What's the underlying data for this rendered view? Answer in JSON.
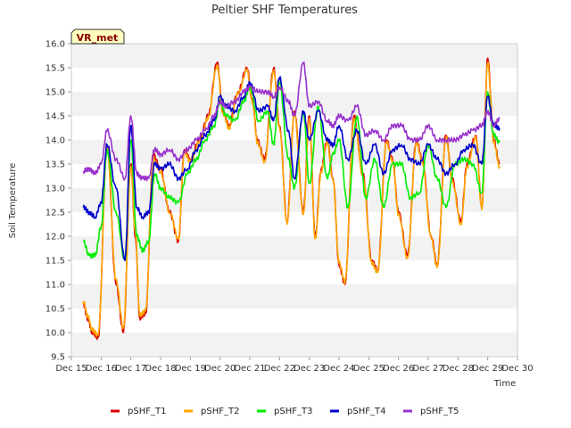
{
  "chart_data": {
    "type": "line",
    "title": "Peltier SHF Temperatures",
    "xlabel": "Time",
    "ylabel": "Soil Temperature",
    "badge": "VR_met",
    "ylim": [
      9.5,
      16.0
    ],
    "yticks": [
      9.5,
      10.0,
      10.5,
      11.0,
      11.5,
      12.0,
      12.5,
      13.0,
      13.5,
      14.0,
      14.5,
      15.0,
      15.5,
      16.0
    ],
    "xlim": [
      15,
      30
    ],
    "xtick_labels": [
      "Dec 15",
      "Dec 16",
      "Dec 17",
      "Dec 18",
      "Dec 19",
      "Dec 20",
      "Dec 21",
      "Dec 22",
      "Dec 23",
      "Dec 24",
      "Dec 25",
      "Dec 26",
      "Dec 27",
      "Dec 28",
      "Dec 29",
      "Dec 30"
    ],
    "grid": "horizontal bands",
    "legend_position": "bottom",
    "series": [
      {
        "name": "pSHF_T1",
        "color": "#dd0000",
        "x": [
          15.4,
          15.55,
          15.7,
          15.9,
          16.2,
          16.5,
          16.75,
          17.0,
          17.15,
          17.3,
          17.5,
          17.75,
          18.0,
          18.3,
          18.6,
          18.8,
          19.0,
          19.3,
          19.6,
          19.9,
          20.1,
          20.3,
          20.6,
          20.9,
          21.1,
          21.25,
          21.5,
          21.8,
          22.0,
          22.25,
          22.5,
          22.8,
          23.0,
          23.2,
          23.4,
          23.6,
          23.8,
          24.0,
          24.2,
          24.5,
          24.8,
          25.1,
          25.3,
          25.6,
          25.8,
          26.0,
          26.3,
          26.6,
          26.8,
          27.1,
          27.3,
          27.6,
          27.8,
          28.1,
          28.3,
          28.6,
          28.8,
          29.0,
          29.2,
          29.4
        ],
        "y": [
          10.6,
          10.3,
          10.0,
          9.9,
          13.9,
          11.0,
          10.0,
          13.5,
          12.0,
          10.3,
          10.4,
          13.7,
          13.4,
          12.5,
          11.9,
          13.8,
          13.6,
          14.0,
          14.5,
          15.6,
          14.6,
          14.3,
          15.0,
          15.5,
          14.8,
          14.0,
          13.6,
          15.5,
          14.3,
          12.3,
          14.6,
          12.5,
          14.5,
          12.0,
          13.4,
          14.0,
          13.2,
          11.4,
          11.0,
          14.5,
          13.3,
          11.5,
          11.3,
          14.0,
          13.6,
          12.5,
          11.6,
          14.0,
          13.6,
          12.0,
          11.4,
          14.1,
          13.2,
          12.3,
          13.5,
          14.1,
          12.6,
          15.7,
          14.0,
          13.5
        ]
      },
      {
        "name": "pSHF_T2",
        "color": "#ffa500",
        "x": [
          15.4,
          15.55,
          15.7,
          15.9,
          16.2,
          16.5,
          16.75,
          17.0,
          17.15,
          17.3,
          17.5,
          17.75,
          18.0,
          18.3,
          18.6,
          18.8,
          19.0,
          19.3,
          19.6,
          19.9,
          20.1,
          20.3,
          20.6,
          20.9,
          21.1,
          21.25,
          21.5,
          21.8,
          22.0,
          22.25,
          22.5,
          22.8,
          23.0,
          23.2,
          23.4,
          23.6,
          23.8,
          24.0,
          24.2,
          24.5,
          24.8,
          25.1,
          25.3,
          25.6,
          25.8,
          26.0,
          26.3,
          26.6,
          26.8,
          27.1,
          27.3,
          27.6,
          27.8,
          28.1,
          28.3,
          28.6,
          28.8,
          29.0,
          29.2,
          29.4
        ],
        "y": [
          10.65,
          10.35,
          10.05,
          9.95,
          13.85,
          11.1,
          10.1,
          13.45,
          12.1,
          10.35,
          10.45,
          13.6,
          13.35,
          12.5,
          11.95,
          13.75,
          13.55,
          13.95,
          14.45,
          15.55,
          14.55,
          14.25,
          14.95,
          15.45,
          14.75,
          13.95,
          13.55,
          15.45,
          14.25,
          12.25,
          14.55,
          12.45,
          14.45,
          11.95,
          13.35,
          13.95,
          13.15,
          11.45,
          11.05,
          14.45,
          13.25,
          11.45,
          11.25,
          13.95,
          13.55,
          12.45,
          11.55,
          13.95,
          13.55,
          11.95,
          11.35,
          14.05,
          13.15,
          12.25,
          13.45,
          14.05,
          12.55,
          15.6,
          13.95,
          13.45
        ]
      },
      {
        "name": "pSHF_T3",
        "color": "#00ee00",
        "x": [
          15.4,
          15.6,
          15.8,
          16.0,
          16.2,
          16.5,
          16.8,
          17.0,
          17.2,
          17.4,
          17.6,
          17.8,
          18.0,
          18.3,
          18.6,
          18.9,
          19.2,
          19.5,
          19.8,
          20.0,
          20.2,
          20.5,
          20.8,
          21.0,
          21.3,
          21.6,
          21.8,
          22.0,
          22.3,
          22.5,
          22.8,
          23.0,
          23.3,
          23.6,
          23.8,
          24.0,
          24.3,
          24.6,
          24.9,
          25.2,
          25.5,
          25.8,
          26.1,
          26.4,
          26.7,
          27.0,
          27.3,
          27.6,
          27.9,
          28.2,
          28.5,
          28.8,
          29.0,
          29.2,
          29.4
        ],
        "y": [
          11.9,
          11.6,
          11.6,
          12.2,
          13.8,
          12.5,
          11.5,
          14.0,
          12.0,
          11.7,
          11.9,
          13.3,
          13.0,
          12.8,
          12.7,
          13.3,
          13.6,
          14.0,
          14.3,
          14.8,
          14.5,
          14.4,
          14.8,
          15.1,
          14.4,
          14.6,
          13.9,
          15.2,
          13.6,
          13.0,
          14.6,
          13.1,
          14.7,
          13.2,
          13.7,
          14.0,
          12.6,
          14.5,
          12.8,
          13.6,
          12.6,
          13.5,
          13.5,
          12.8,
          12.9,
          13.9,
          13.2,
          12.6,
          13.5,
          13.6,
          13.5,
          12.9,
          15.0,
          14.1,
          13.95
        ]
      },
      {
        "name": "pSHF_T4",
        "color": "#0000cc",
        "x": [
          15.4,
          15.6,
          15.8,
          16.0,
          16.2,
          16.5,
          16.8,
          17.0,
          17.2,
          17.4,
          17.6,
          17.8,
          18.0,
          18.3,
          18.6,
          18.9,
          19.2,
          19.5,
          19.8,
          20.0,
          20.2,
          20.5,
          20.8,
          21.0,
          21.3,
          21.6,
          21.8,
          22.0,
          22.3,
          22.5,
          22.8,
          23.0,
          23.3,
          23.6,
          23.8,
          24.0,
          24.3,
          24.6,
          24.9,
          25.2,
          25.5,
          25.8,
          26.1,
          26.4,
          26.7,
          27.0,
          27.3,
          27.6,
          27.9,
          28.2,
          28.5,
          28.8,
          29.0,
          29.2,
          29.4
        ],
        "y": [
          12.6,
          12.5,
          12.4,
          12.7,
          13.9,
          13.0,
          11.5,
          14.3,
          12.6,
          12.4,
          12.5,
          13.5,
          13.4,
          13.5,
          13.2,
          13.4,
          13.8,
          14.1,
          14.4,
          14.9,
          14.7,
          14.6,
          14.9,
          15.2,
          14.6,
          14.7,
          14.4,
          15.3,
          14.2,
          13.2,
          14.6,
          14.0,
          14.6,
          14.0,
          13.9,
          14.3,
          13.6,
          14.2,
          13.5,
          13.9,
          13.3,
          13.8,
          13.9,
          13.6,
          13.5,
          13.9,
          13.6,
          13.3,
          13.5,
          13.8,
          13.9,
          13.5,
          14.9,
          14.3,
          14.25
        ]
      },
      {
        "name": "pSHF_T5",
        "color": "#9933cc",
        "x": [
          15.4,
          15.6,
          15.8,
          16.0,
          16.2,
          16.5,
          16.8,
          17.0,
          17.2,
          17.4,
          17.6,
          17.8,
          18.0,
          18.3,
          18.6,
          18.9,
          19.2,
          19.5,
          19.8,
          20.0,
          20.2,
          20.5,
          20.8,
          21.0,
          21.3,
          21.6,
          21.8,
          22.0,
          22.3,
          22.5,
          22.8,
          23.0,
          23.3,
          23.6,
          23.8,
          24.0,
          24.3,
          24.6,
          24.9,
          25.2,
          25.5,
          25.8,
          26.1,
          26.4,
          26.7,
          27.0,
          27.3,
          27.6,
          27.9,
          28.2,
          28.5,
          28.8,
          29.0,
          29.2,
          29.4
        ],
        "y": [
          13.35,
          13.4,
          13.3,
          13.5,
          14.2,
          13.6,
          13.2,
          14.5,
          13.3,
          13.2,
          13.2,
          13.8,
          13.7,
          13.8,
          13.6,
          13.8,
          14.0,
          14.2,
          14.5,
          14.8,
          14.7,
          14.8,
          15.0,
          15.1,
          15.0,
          15.0,
          14.9,
          15.1,
          14.8,
          14.5,
          15.6,
          14.7,
          14.8,
          14.4,
          14.3,
          14.5,
          14.4,
          14.7,
          14.1,
          14.2,
          14.0,
          14.3,
          14.3,
          14.0,
          14.0,
          14.3,
          14.0,
          14.0,
          14.0,
          14.1,
          14.2,
          14.3,
          14.6,
          14.3,
          14.45
        ]
      }
    ]
  }
}
